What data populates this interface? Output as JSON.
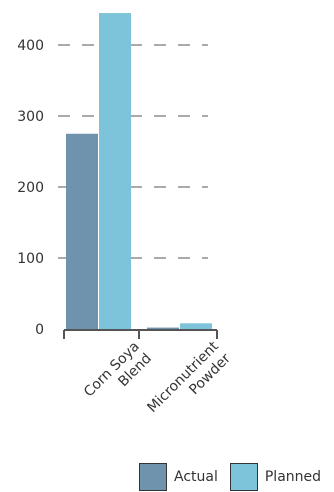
{
  "chart_data": {
    "type": "bar",
    "categories": [
      "Corn Soya Blend",
      "Micronutrient Powder"
    ],
    "category_lines": [
      [
        "Corn Soya",
        "Blend"
      ],
      [
        "Micronutrient",
        "Powder"
      ]
    ],
    "series": [
      {
        "name": "Actual",
        "color": "#6f93ad",
        "values": [
          275,
          2
        ]
      },
      {
        "name": "Planned",
        "color": "#7dc3d9",
        "values": [
          445,
          8
        ]
      }
    ],
    "yticks": [
      0,
      100,
      200,
      300,
      400
    ],
    "ylim": [
      0,
      445
    ],
    "grid": "dashed horizontal",
    "legend_position": "bottom-right"
  }
}
